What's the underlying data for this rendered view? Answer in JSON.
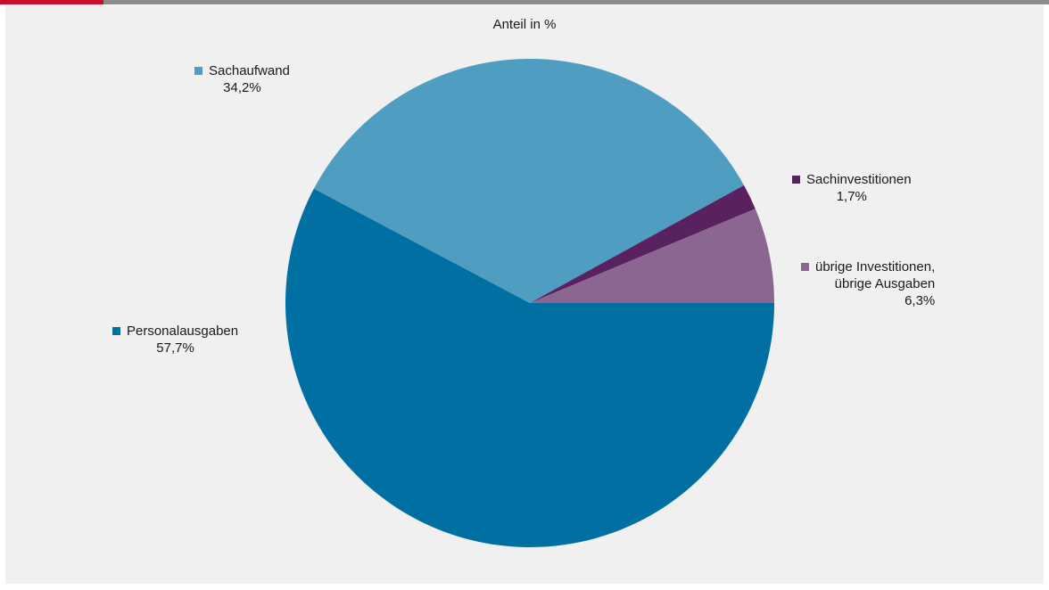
{
  "chart_data": {
    "type": "pie",
    "title": "Anteil in %",
    "slices": [
      {
        "name": "Personalausgaben",
        "value": 57.7,
        "value_label": "57,7%",
        "color": "#0070a3"
      },
      {
        "name": "Sachaufwand",
        "value": 34.2,
        "value_label": "34,2%",
        "color": "#4f9ec2"
      },
      {
        "name": "Sachinvestitionen",
        "value": 1.7,
        "value_label": "1,7%",
        "color": "#5a2160"
      },
      {
        "name_lines": [
          "übrige Investitionen,",
          "übrige Ausgaben"
        ],
        "value": 6.3,
        "value_label": "6,3%",
        "color": "#8b6690"
      }
    ]
  },
  "colors": {
    "panel_background": "#eff0ef",
    "top_bar": "#8c8c8c",
    "top_accent": "#c8102e"
  }
}
